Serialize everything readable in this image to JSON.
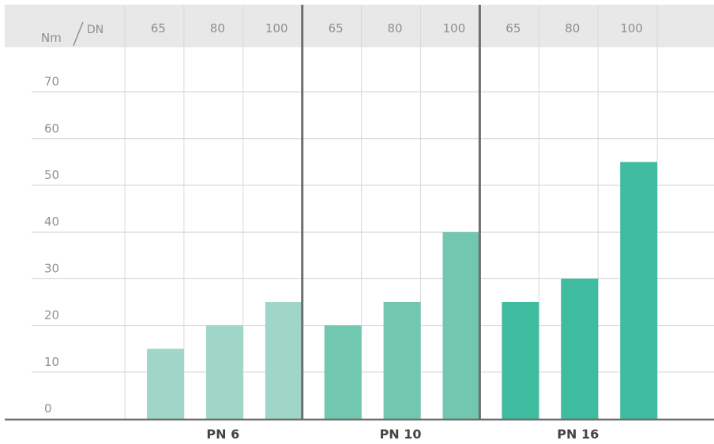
{
  "chart_data": {
    "type": "bar",
    "corner_label": {
      "y_unit": "Nm",
      "x_unit": "DN"
    },
    "groups": [
      "PN 6",
      "PN 10",
      "PN 16"
    ],
    "dn_labels": [
      "65",
      "80",
      "100"
    ],
    "series": [
      {
        "group": "PN 6",
        "values": [
          15,
          20,
          25
        ],
        "color": "#9fd6c8"
      },
      {
        "group": "PN 10",
        "values": [
          20,
          25,
          40
        ],
        "color": "#72c7b1"
      },
      {
        "group": "PN 16",
        "values": [
          25,
          30,
          55
        ],
        "color": "#3fbb9f"
      }
    ],
    "y_ticks": [
      "0",
      "10",
      "20",
      "30",
      "40",
      "50",
      "60",
      "70"
    ],
    "ylim": [
      0,
      80
    ],
    "grid": true,
    "header_color": "#e8e8e8"
  }
}
